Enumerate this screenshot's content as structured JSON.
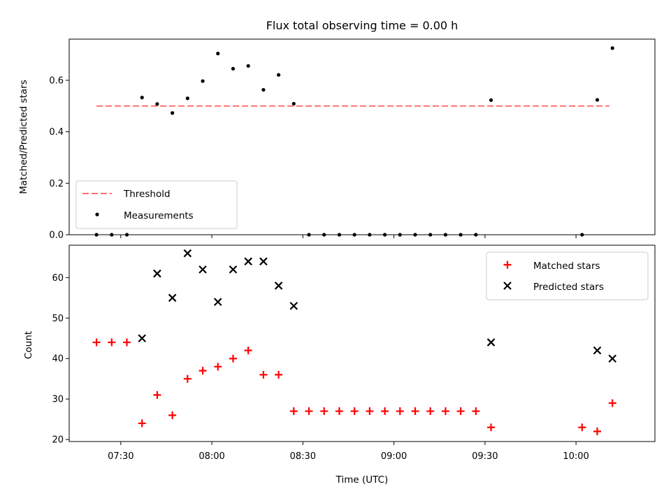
{
  "title": "Flux total observing time = 0.00 h",
  "colors": {
    "threshold": "#ff7070",
    "measurement": "#000000",
    "matched": "#ff0000",
    "predicted": "#000000"
  },
  "chart_data": [
    {
      "type": "scatter",
      "ylabel": "Matched/Predicted stars",
      "xlabel": "",
      "xlim": [
        "07:13",
        "10:26"
      ],
      "ylim": [
        0,
        0.76
      ],
      "yticks": [
        0.0,
        0.2,
        0.4,
        0.6
      ],
      "ytick_labels": [
        "0.0",
        "0.2",
        "0.4",
        "0.6"
      ],
      "grid": false,
      "legend_position": "lower-left",
      "series": [
        {
          "name": "Threshold",
          "style": "dashed-line",
          "points": [
            {
              "x": "07:22",
              "y": 0.5
            },
            {
              "x": "10:11",
              "y": 0.5
            }
          ]
        },
        {
          "name": "Measurements",
          "style": "dot",
          "points": [
            {
              "x": "07:22",
              "y": 0.0
            },
            {
              "x": "07:27",
              "y": 0.0
            },
            {
              "x": "07:32",
              "y": 0.0
            },
            {
              "x": "07:37",
              "y": 0.533
            },
            {
              "x": "07:42",
              "y": 0.508
            },
            {
              "x": "07:47",
              "y": 0.473
            },
            {
              "x": "07:52",
              "y": 0.53
            },
            {
              "x": "07:57",
              "y": 0.597
            },
            {
              "x": "08:02",
              "y": 0.704
            },
            {
              "x": "08:07",
              "y": 0.645
            },
            {
              "x": "08:12",
              "y": 0.656
            },
            {
              "x": "08:17",
              "y": 0.563
            },
            {
              "x": "08:22",
              "y": 0.621
            },
            {
              "x": "08:27",
              "y": 0.509
            },
            {
              "x": "08:32",
              "y": 0.0
            },
            {
              "x": "08:37",
              "y": 0.0
            },
            {
              "x": "08:42",
              "y": 0.0
            },
            {
              "x": "08:47",
              "y": 0.0
            },
            {
              "x": "08:52",
              "y": 0.0
            },
            {
              "x": "08:57",
              "y": 0.0
            },
            {
              "x": "09:02",
              "y": 0.0
            },
            {
              "x": "09:07",
              "y": 0.0
            },
            {
              "x": "09:12",
              "y": 0.0
            },
            {
              "x": "09:17",
              "y": 0.0
            },
            {
              "x": "09:22",
              "y": 0.0
            },
            {
              "x": "09:27",
              "y": 0.0
            },
            {
              "x": "09:32",
              "y": 0.523
            },
            {
              "x": "10:02",
              "y": 0.0
            },
            {
              "x": "10:07",
              "y": 0.524
            },
            {
              "x": "10:12",
              "y": 0.725
            }
          ]
        }
      ]
    },
    {
      "type": "scatter",
      "ylabel": "Count",
      "xlabel": "Time (UTC)",
      "xlim": [
        "07:13",
        "10:26"
      ],
      "ylim": [
        19.5,
        68
      ],
      "xticks": [
        "07:30",
        "08:00",
        "08:30",
        "09:00",
        "09:30",
        "10:00"
      ],
      "yticks": [
        20,
        30,
        40,
        50,
        60
      ],
      "grid": false,
      "legend_position": "top-right",
      "series": [
        {
          "name": "Matched stars",
          "style": "plus",
          "points": [
            {
              "x": "07:22",
              "y": 44
            },
            {
              "x": "07:27",
              "y": 44
            },
            {
              "x": "07:32",
              "y": 44
            },
            {
              "x": "07:37",
              "y": 24
            },
            {
              "x": "07:42",
              "y": 31
            },
            {
              "x": "07:47",
              "y": 26
            },
            {
              "x": "07:52",
              "y": 35
            },
            {
              "x": "07:57",
              "y": 37
            },
            {
              "x": "08:02",
              "y": 38
            },
            {
              "x": "08:07",
              "y": 40
            },
            {
              "x": "08:12",
              "y": 42
            },
            {
              "x": "08:17",
              "y": 36
            },
            {
              "x": "08:22",
              "y": 36
            },
            {
              "x": "08:27",
              "y": 27
            },
            {
              "x": "08:32",
              "y": 27
            },
            {
              "x": "08:37",
              "y": 27
            },
            {
              "x": "08:42",
              "y": 27
            },
            {
              "x": "08:47",
              "y": 27
            },
            {
              "x": "08:52",
              "y": 27
            },
            {
              "x": "08:57",
              "y": 27
            },
            {
              "x": "09:02",
              "y": 27
            },
            {
              "x": "09:07",
              "y": 27
            },
            {
              "x": "09:12",
              "y": 27
            },
            {
              "x": "09:17",
              "y": 27
            },
            {
              "x": "09:22",
              "y": 27
            },
            {
              "x": "09:27",
              "y": 27
            },
            {
              "x": "09:32",
              "y": 23
            },
            {
              "x": "10:02",
              "y": 23
            },
            {
              "x": "10:07",
              "y": 22
            },
            {
              "x": "10:12",
              "y": 29
            }
          ]
        },
        {
          "name": "Predicted stars",
          "style": "x",
          "points": [
            {
              "x": "07:37",
              "y": 45
            },
            {
              "x": "07:42",
              "y": 61
            },
            {
              "x": "07:47",
              "y": 55
            },
            {
              "x": "07:52",
              "y": 66
            },
            {
              "x": "07:57",
              "y": 62
            },
            {
              "x": "08:02",
              "y": 54
            },
            {
              "x": "08:07",
              "y": 62
            },
            {
              "x": "08:12",
              "y": 64
            },
            {
              "x": "08:17",
              "y": 64
            },
            {
              "x": "08:22",
              "y": 58
            },
            {
              "x": "08:27",
              "y": 53
            },
            {
              "x": "09:32",
              "y": 44
            },
            {
              "x": "10:07",
              "y": 42
            },
            {
              "x": "10:12",
              "y": 40
            }
          ]
        }
      ]
    }
  ]
}
